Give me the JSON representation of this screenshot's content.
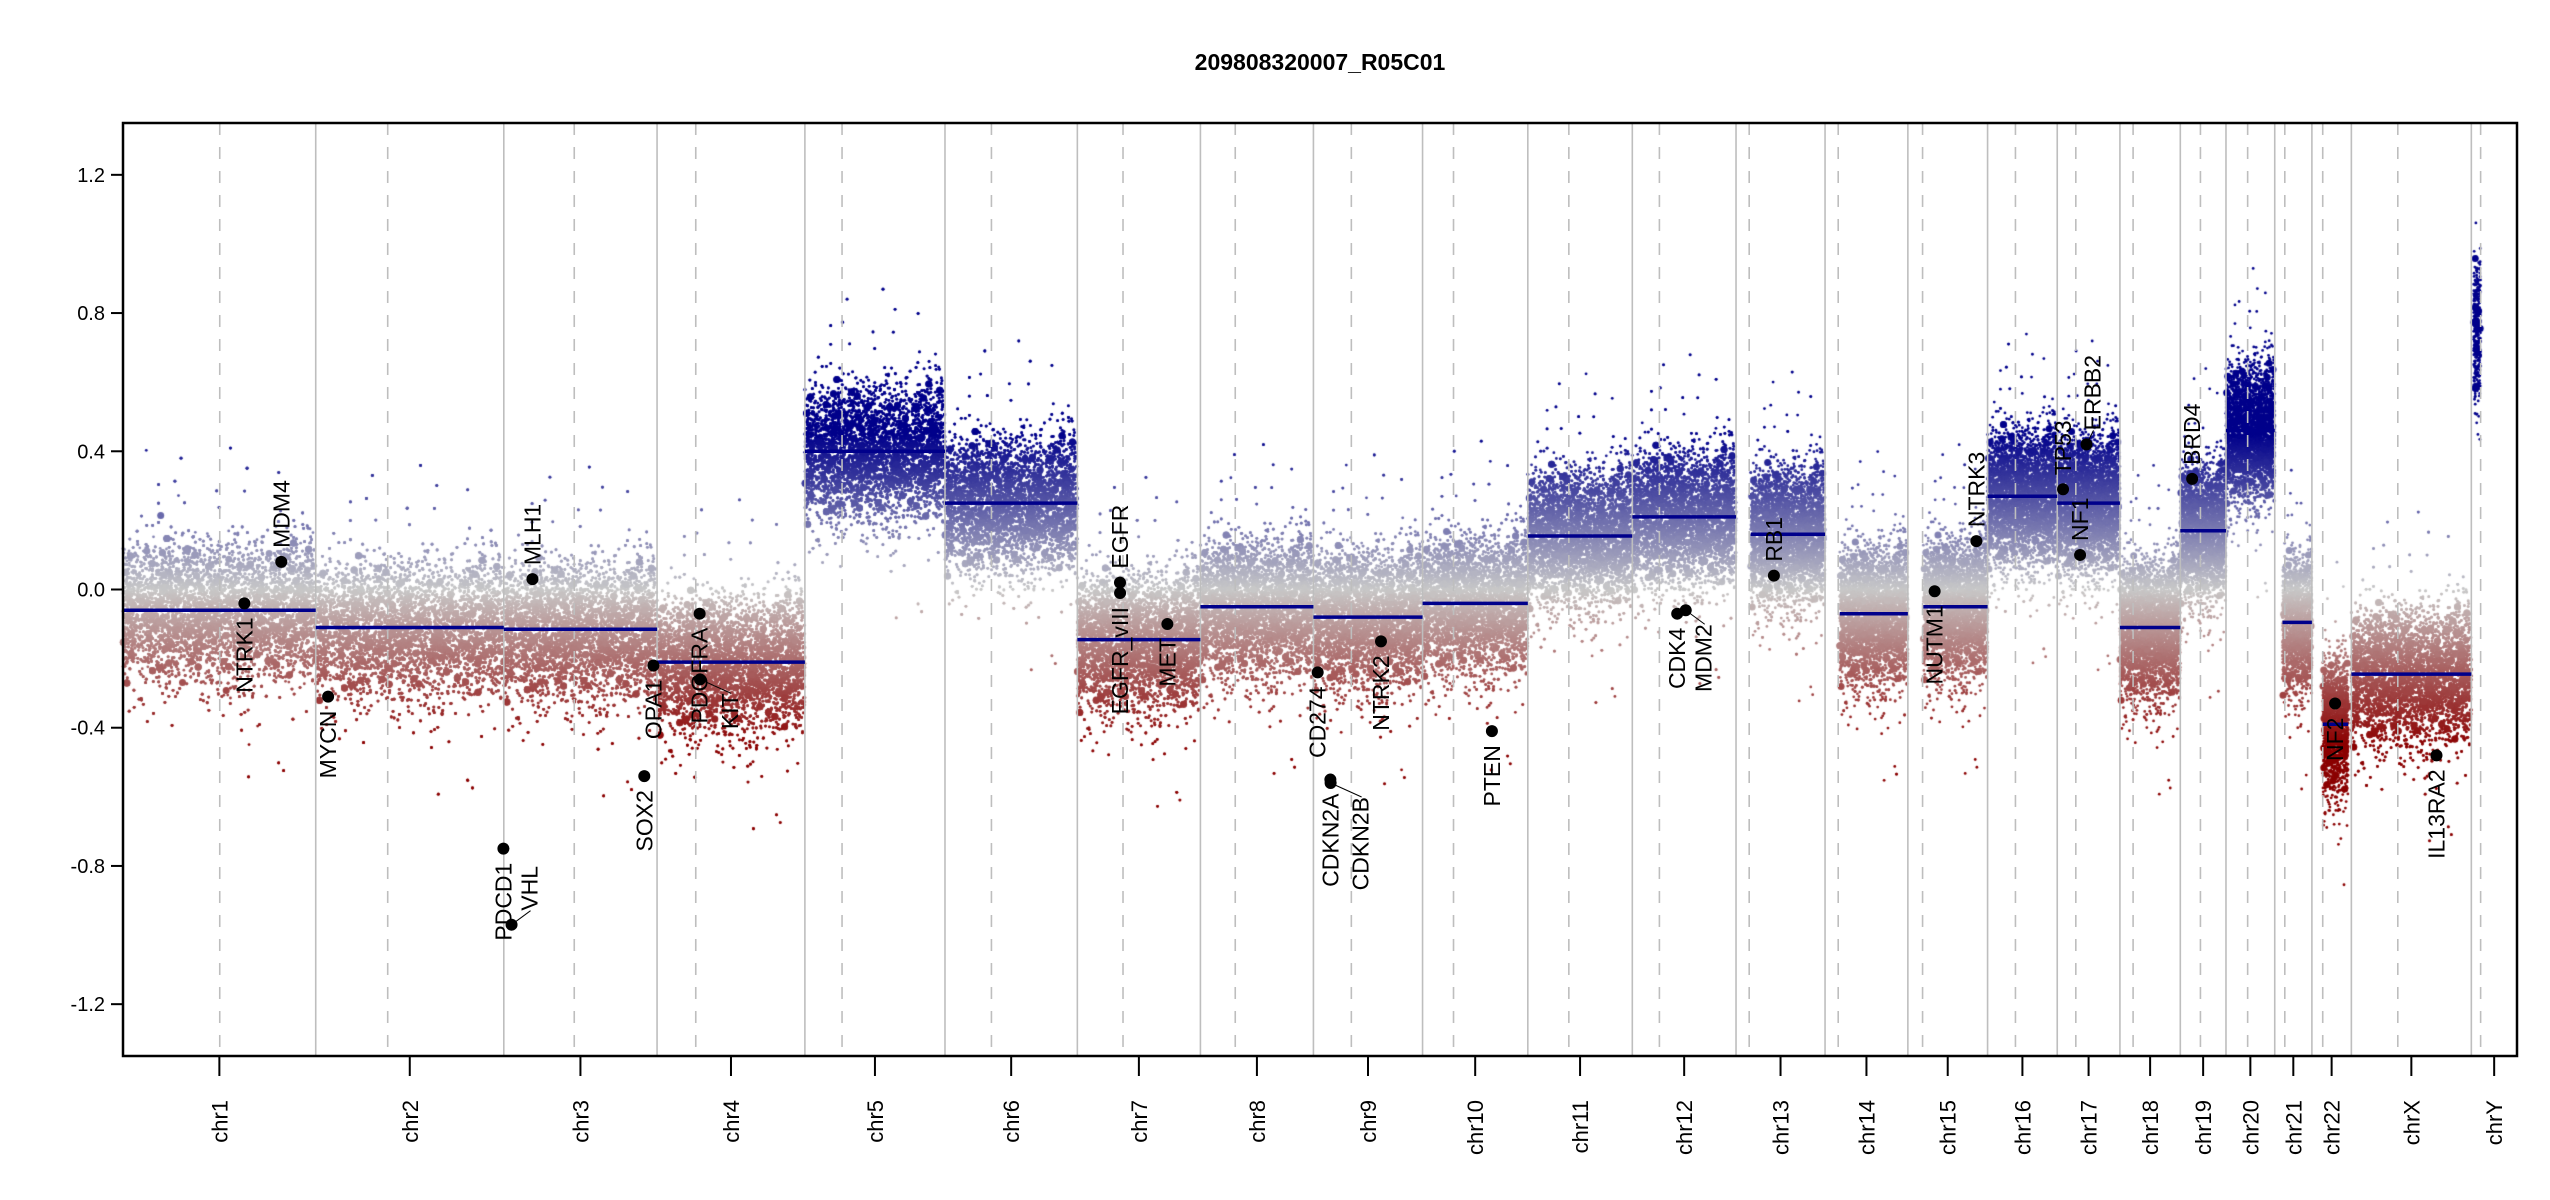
{
  "chart_data": {
    "type": "scatter",
    "title": "209808320007_R05C01",
    "xlabel": "",
    "ylabel": "",
    "ylim": [
      -1.35,
      1.35
    ],
    "yticks": [
      "1.2",
      "0.8",
      "0.4",
      "0.0",
      "-0.4",
      "-0.8",
      "-1.2"
    ],
    "grid": false,
    "colors": {
      "gain": "#00008b",
      "neutral": "#c8c8c8",
      "loss": "#8b0000",
      "segment": "#00008b",
      "gene": "#000000",
      "chr_boundary": "#bebebe"
    },
    "chromosomes": [
      {
        "name": "chr1",
        "length_mb": 249,
        "centromere_mb": 125
      },
      {
        "name": "chr2",
        "length_mb": 243,
        "centromere_mb": 93
      },
      {
        "name": "chr3",
        "length_mb": 198,
        "centromere_mb": 91
      },
      {
        "name": "chr4",
        "length_mb": 191,
        "centromere_mb": 50
      },
      {
        "name": "chr5",
        "length_mb": 181,
        "centromere_mb": 48
      },
      {
        "name": "chr6",
        "length_mb": 171,
        "centromere_mb": 60
      },
      {
        "name": "chr7",
        "length_mb": 159,
        "centromere_mb": 59
      },
      {
        "name": "chr8",
        "length_mb": 146,
        "centromere_mb": 45
      },
      {
        "name": "chr9",
        "length_mb": 141,
        "centromere_mb": 49
      },
      {
        "name": "chr10",
        "length_mb": 136,
        "centromere_mb": 40
      },
      {
        "name": "chr11",
        "length_mb": 135,
        "centromere_mb": 53
      },
      {
        "name": "chr12",
        "length_mb": 134,
        "centromere_mb": 35
      },
      {
        "name": "chr13",
        "length_mb": 115,
        "centromere_mb": 17
      },
      {
        "name": "chr14",
        "length_mb": 107,
        "centromere_mb": 17
      },
      {
        "name": "chr15",
        "length_mb": 103,
        "centromere_mb": 19
      },
      {
        "name": "chr16",
        "length_mb": 90,
        "centromere_mb": 36
      },
      {
        "name": "chr17",
        "length_mb": 81,
        "centromere_mb": 24
      },
      {
        "name": "chr18",
        "length_mb": 78,
        "centromere_mb": 17
      },
      {
        "name": "chr19",
        "length_mb": 59,
        "centromere_mb": 26
      },
      {
        "name": "chr20",
        "length_mb": 63,
        "centromere_mb": 28
      },
      {
        "name": "chr21",
        "length_mb": 48,
        "centromere_mb": 13
      },
      {
        "name": "chr22",
        "length_mb": 51,
        "centromere_mb": 14
      },
      {
        "name": "chrX",
        "length_mb": 155,
        "centromere_mb": 60
      },
      {
        "name": "chrY",
        "length_mb": 59,
        "centromere_mb": 12
      }
    ],
    "segments": [
      {
        "chr": "chr1",
        "start": 0,
        "end": 249,
        "value": -0.06
      },
      {
        "chr": "chr2",
        "start": 0,
        "end": 243,
        "value": -0.11
      },
      {
        "chr": "chr3",
        "start": 0,
        "end": 198,
        "value": -0.115
      },
      {
        "chr": "chr4",
        "start": 0,
        "end": 191,
        "value": -0.21
      },
      {
        "chr": "chr5",
        "start": 0,
        "end": 181,
        "value": 0.4
      },
      {
        "chr": "chr6",
        "start": 0,
        "end": 171,
        "value": 0.25
      },
      {
        "chr": "chr7",
        "start": 0,
        "end": 159,
        "value": -0.145
      },
      {
        "chr": "chr8",
        "start": 0,
        "end": 146,
        "value": -0.05
      },
      {
        "chr": "chr9",
        "start": 0,
        "end": 141,
        "value": -0.08
      },
      {
        "chr": "chr10",
        "start": 0,
        "end": 136,
        "value": -0.04
      },
      {
        "chr": "chr11",
        "start": 0,
        "end": 135,
        "value": 0.155
      },
      {
        "chr": "chr12",
        "start": 0,
        "end": 134,
        "value": 0.21
      },
      {
        "chr": "chr13",
        "start": 19,
        "end": 115,
        "value": 0.16
      },
      {
        "chr": "chr14",
        "start": 19,
        "end": 107,
        "value": -0.07
      },
      {
        "chr": "chr15",
        "start": 20,
        "end": 103,
        "value": -0.05
      },
      {
        "chr": "chr16",
        "start": 0,
        "end": 90,
        "value": 0.27
      },
      {
        "chr": "chr17",
        "start": 0,
        "end": 81,
        "value": 0.25
      },
      {
        "chr": "chr18",
        "start": 0,
        "end": 78,
        "value": -0.11
      },
      {
        "chr": "chr19",
        "start": 0,
        "end": 59,
        "value": 0.17
      },
      {
        "chr": "chr20",
        "start": 0,
        "end": 63,
        "value": 0.46
      },
      {
        "chr": "chr21",
        "start": 10,
        "end": 48,
        "value": -0.095
      },
      {
        "chr": "chr22",
        "start": 14,
        "end": 47,
        "value": -0.39
      },
      {
        "chr": "chrX",
        "start": 0,
        "end": 155,
        "value": -0.245
      },
      {
        "chr": "chrY",
        "start": 3,
        "end": 12,
        "value": 0.75
      }
    ],
    "genes": [
      {
        "name": "NTRK1",
        "chr": "chr1",
        "pos_mb": 156.8,
        "value": -0.04,
        "label": "below"
      },
      {
        "name": "MDM4",
        "chr": "chr1",
        "pos_mb": 204.5,
        "value": 0.08,
        "label": "above"
      },
      {
        "name": "MYCN",
        "chr": "chr2",
        "pos_mb": 16,
        "value": -0.31,
        "label": "below"
      },
      {
        "name": "PDCD1",
        "chr": "chr2",
        "pos_mb": 242.5,
        "value": -0.75,
        "label": "below"
      },
      {
        "name": "VHL",
        "chr": "chr3",
        "pos_mb": 10,
        "value": -0.97,
        "label": "above"
      },
      {
        "name": "MLH1",
        "chr": "chr3",
        "pos_mb": 37,
        "value": 0.03,
        "label": "above"
      },
      {
        "name": "SOX2",
        "chr": "chr3",
        "pos_mb": 181.5,
        "value": -0.54,
        "label": "below"
      },
      {
        "name": "OPA1",
        "chr": "chr3",
        "pos_mb": 193.3,
        "value": -0.22,
        "label": "below"
      },
      {
        "name": "PDGFRA",
        "chr": "chr4",
        "pos_mb": 55,
        "value": -0.07,
        "label": "below"
      },
      {
        "name": "KIT",
        "chr": "chr4",
        "pos_mb": 55.5,
        "value": -0.26,
        "label": "below"
      },
      {
        "name": "EGFR",
        "chr": "chr7",
        "pos_mb": 55.1,
        "value": 0.02,
        "label": "above"
      },
      {
        "name": "EGFR_vIII",
        "chr": "chr7",
        "pos_mb": 55.2,
        "value": -0.01,
        "label": "below"
      },
      {
        "name": "MET",
        "chr": "chr7",
        "pos_mb": 116.3,
        "value": -0.1,
        "label": "below"
      },
      {
        "name": "CD274",
        "chr": "chr9",
        "pos_mb": 5.5,
        "value": -0.24,
        "label": "below"
      },
      {
        "name": "CDKN2A",
        "chr": "chr9",
        "pos_mb": 21.9,
        "value": -0.55,
        "label": "below"
      },
      {
        "name": "CDKN2B",
        "chr": "chr9",
        "pos_mb": 22.2,
        "value": -0.56,
        "label": "below"
      },
      {
        "name": "NTRK2",
        "chr": "chr9",
        "pos_mb": 87.3,
        "value": -0.15,
        "label": "below"
      },
      {
        "name": "PTEN",
        "chr": "chr10",
        "pos_mb": 89.6,
        "value": -0.41,
        "label": "below"
      },
      {
        "name": "CDK4",
        "chr": "chr12",
        "pos_mb": 58,
        "value": -0.07,
        "label": "below"
      },
      {
        "name": "MDM2",
        "chr": "chr12",
        "pos_mb": 69,
        "value": -0.06,
        "label": "below"
      },
      {
        "name": "RB1",
        "chr": "chr13",
        "pos_mb": 48.9,
        "value": 0.04,
        "label": "above"
      },
      {
        "name": "NUTM1",
        "chr": "chr15",
        "pos_mb": 34.6,
        "value": -0.005,
        "label": "below"
      },
      {
        "name": "NTRK3",
        "chr": "chr15",
        "pos_mb": 88.5,
        "value": 0.14,
        "label": "above"
      },
      {
        "name": "TP53",
        "chr": "chr17",
        "pos_mb": 7.5,
        "value": 0.29,
        "label": "above"
      },
      {
        "name": "NF1",
        "chr": "chr17",
        "pos_mb": 29.5,
        "value": 0.1,
        "label": "above"
      },
      {
        "name": "ERBB2",
        "chr": "chr17",
        "pos_mb": 37.8,
        "value": 0.42,
        "label": "above"
      },
      {
        "name": "BRD4",
        "chr": "chr19",
        "pos_mb": 15.3,
        "value": 0.32,
        "label": "above"
      },
      {
        "name": "NF2",
        "chr": "chr22",
        "pos_mb": 30,
        "value": -0.33,
        "label": "below"
      },
      {
        "name": "IL13RA2",
        "chr": "chrX",
        "pos_mb": 110,
        "value": -0.48,
        "label": "below"
      }
    ]
  }
}
